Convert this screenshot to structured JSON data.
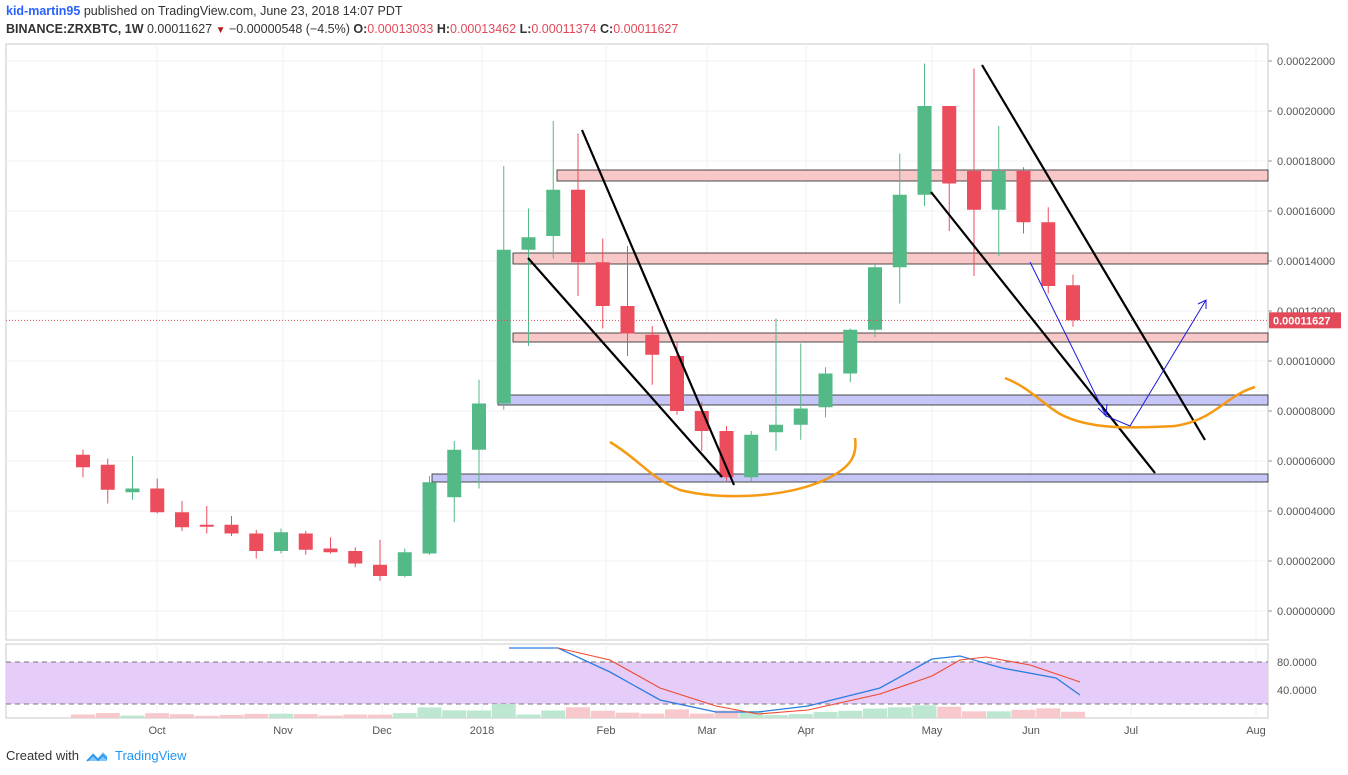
{
  "header": {
    "author": "kid-martin95",
    "published": "published on TradingView.com, June 23, 2018 14:07 PDT",
    "symbol": "BINANCE:ZRXBTC, 1W",
    "last": "0.00011627",
    "change": "−0.00000548 (−4.5%)",
    "o_label": "O:",
    "o_value": "0.00013033",
    "h_label": "H:",
    "h_value": "0.00013462",
    "l_label": "L:",
    "l_value": "0.00011374",
    "c_label": "C:",
    "c_value": "0.00011627"
  },
  "footer": {
    "created_with": "Created with",
    "brand": "TradingView"
  },
  "colors": {
    "up": "#53b987",
    "down": "#eb4d5c",
    "resistance_zone": "#f8c8c8",
    "support_zone": "#c5c6f5",
    "rsi_band": "#e6ccf8",
    "trendline": "#000000",
    "curve": "#f59a12",
    "projection": "#1a1ae0",
    "price_marker": "#e24a5a"
  },
  "chart_data": {
    "type": "candlestick",
    "interval": "1W",
    "current_price": "0.00011627",
    "x_ticks": [
      "Oct",
      "Nov",
      "Dec",
      "2018",
      "Feb",
      "Mar",
      "Apr",
      "May",
      "Jun",
      "Jul",
      "Aug"
    ],
    "y_ticks": [
      "0.00022000",
      "0.00020000",
      "0.00018000",
      "0.00016000",
      "0.00014000",
      "0.00012000",
      "0.00010000",
      "0.00008000",
      "0.00006000",
      "0.00004000",
      "0.00002000",
      "0.00000000"
    ],
    "y_range": [
      -1.3e-05,
      0.000226
    ],
    "candles": [
      {
        "o": 6.25e-05,
        "h": 6.45e-05,
        "l": 5.35e-05,
        "c": 5.75e-05
      },
      {
        "o": 5.85e-05,
        "h": 6.1e-05,
        "l": 4.3e-05,
        "c": 4.85e-05
      },
      {
        "o": 4.75e-05,
        "h": 6.2e-05,
        "l": 4.45e-05,
        "c": 4.9e-05
      },
      {
        "o": 4.9e-05,
        "h": 5.3e-05,
        "l": 3.9e-05,
        "c": 3.95e-05
      },
      {
        "o": 3.95e-05,
        "h": 4.4e-05,
        "l": 3.2e-05,
        "c": 3.35e-05
      },
      {
        "o": 3.45e-05,
        "h": 4.2e-05,
        "l": 3.1e-05,
        "c": 3.4e-05
      },
      {
        "o": 3.45e-05,
        "h": 3.8e-05,
        "l": 3e-05,
        "c": 3.1e-05
      },
      {
        "o": 3.1e-05,
        "h": 3.25e-05,
        "l": 2.1e-05,
        "c": 2.4e-05
      },
      {
        "o": 2.4e-05,
        "h": 3.3e-05,
        "l": 2.3e-05,
        "c": 3.15e-05
      },
      {
        "o": 3.1e-05,
        "h": 3.2e-05,
        "l": 2.25e-05,
        "c": 2.45e-05
      },
      {
        "o": 2.5e-05,
        "h": 2.95e-05,
        "l": 2.3e-05,
        "c": 2.35e-05
      },
      {
        "o": 2.4e-05,
        "h": 2.55e-05,
        "l": 1.75e-05,
        "c": 1.9e-05
      },
      {
        "o": 1.85e-05,
        "h": 2.85e-05,
        "l": 1.2e-05,
        "c": 1.4e-05
      },
      {
        "o": 1.4e-05,
        "h": 2.5e-05,
        "l": 1.35e-05,
        "c": 2.35e-05
      },
      {
        "o": 2.3e-05,
        "h": 5.4e-05,
        "l": 2.25e-05,
        "c": 5.15e-05
      },
      {
        "o": 4.55e-05,
        "h": 6.8e-05,
        "l": 3.55e-05,
        "c": 6.45e-05
      },
      {
        "o": 6.45e-05,
        "h": 9.25e-05,
        "l": 4.9e-05,
        "c": 8.3e-05
      },
      {
        "o": 8.3e-05,
        "h": 0.000178,
        "l": 8.05e-05,
        "c": 0.0001445
      },
      {
        "o": 0.0001445,
        "h": 0.000161,
        "l": 0.000106,
        "c": 0.0001495
      },
      {
        "o": 0.00015,
        "h": 0.000196,
        "l": 0.000141,
        "c": 0.0001685
      },
      {
        "o": 0.0001685,
        "h": 0.000191,
        "l": 0.000126,
        "c": 0.0001395
      },
      {
        "o": 0.0001395,
        "h": 0.000149,
        "l": 0.000113,
        "c": 0.000122
      },
      {
        "o": 0.000122,
        "h": 0.000146,
        "l": 0.000102,
        "c": 0.000111
      },
      {
        "o": 0.0001105,
        "h": 0.000114,
        "l": 9.05e-05,
        "c": 0.0001025
      },
      {
        "o": 0.000102,
        "h": 0.0001075,
        "l": 7.85e-05,
        "c": 8e-05
      },
      {
        "o": 8e-05,
        "h": 8.35e-05,
        "l": 6.4e-05,
        "c": 7.2e-05
      },
      {
        "o": 7.2e-05,
        "h": 7.4e-05,
        "l": 5.2e-05,
        "c": 5.35e-05
      },
      {
        "o": 5.35e-05,
        "h": 7.2e-05,
        "l": 5.2e-05,
        "c": 7.05e-05
      },
      {
        "o": 7.15e-05,
        "h": 0.000117,
        "l": 6.4e-05,
        "c": 7.45e-05
      },
      {
        "o": 7.45e-05,
        "h": 0.000107,
        "l": 6.85e-05,
        "c": 8.1e-05
      },
      {
        "o": 8.15e-05,
        "h": 9.75e-05,
        "l": 7.75e-05,
        "c": 9.5e-05
      },
      {
        "o": 9.5e-05,
        "h": 0.000113,
        "l": 9.15e-05,
        "c": 0.0001125
      },
      {
        "o": 0.0001125,
        "h": 0.0001385,
        "l": 0.0001095,
        "c": 0.0001375
      },
      {
        "o": 0.0001375,
        "h": 0.000183,
        "l": 0.000123,
        "c": 0.0001665
      },
      {
        "o": 0.0001665,
        "h": 0.000219,
        "l": 0.000162,
        "c": 0.000202
      },
      {
        "o": 0.000202,
        "h": 0.000202,
        "l": 0.000152,
        "c": 0.000171
      },
      {
        "o": 0.000176,
        "h": 0.000217,
        "l": 0.000134,
        "c": 0.0001605
      },
      {
        "o": 0.0001605,
        "h": 0.000194,
        "l": 0.000142,
        "c": 0.000176
      },
      {
        "o": 0.000176,
        "h": 0.0001775,
        "l": 0.000151,
        "c": 0.0001555
      },
      {
        "o": 0.0001555,
        "h": 0.0001615,
        "l": 0.000127,
        "c": 0.00013
      },
      {
        "o": 0.0001303,
        "h": 0.0001346,
        "l": 0.0001137,
        "c": 0.0001163
      }
    ],
    "rsi": {
      "ticks": [
        "80.0000",
        "40.0000"
      ],
      "upper_band": 80,
      "lower_band": 20
    }
  }
}
